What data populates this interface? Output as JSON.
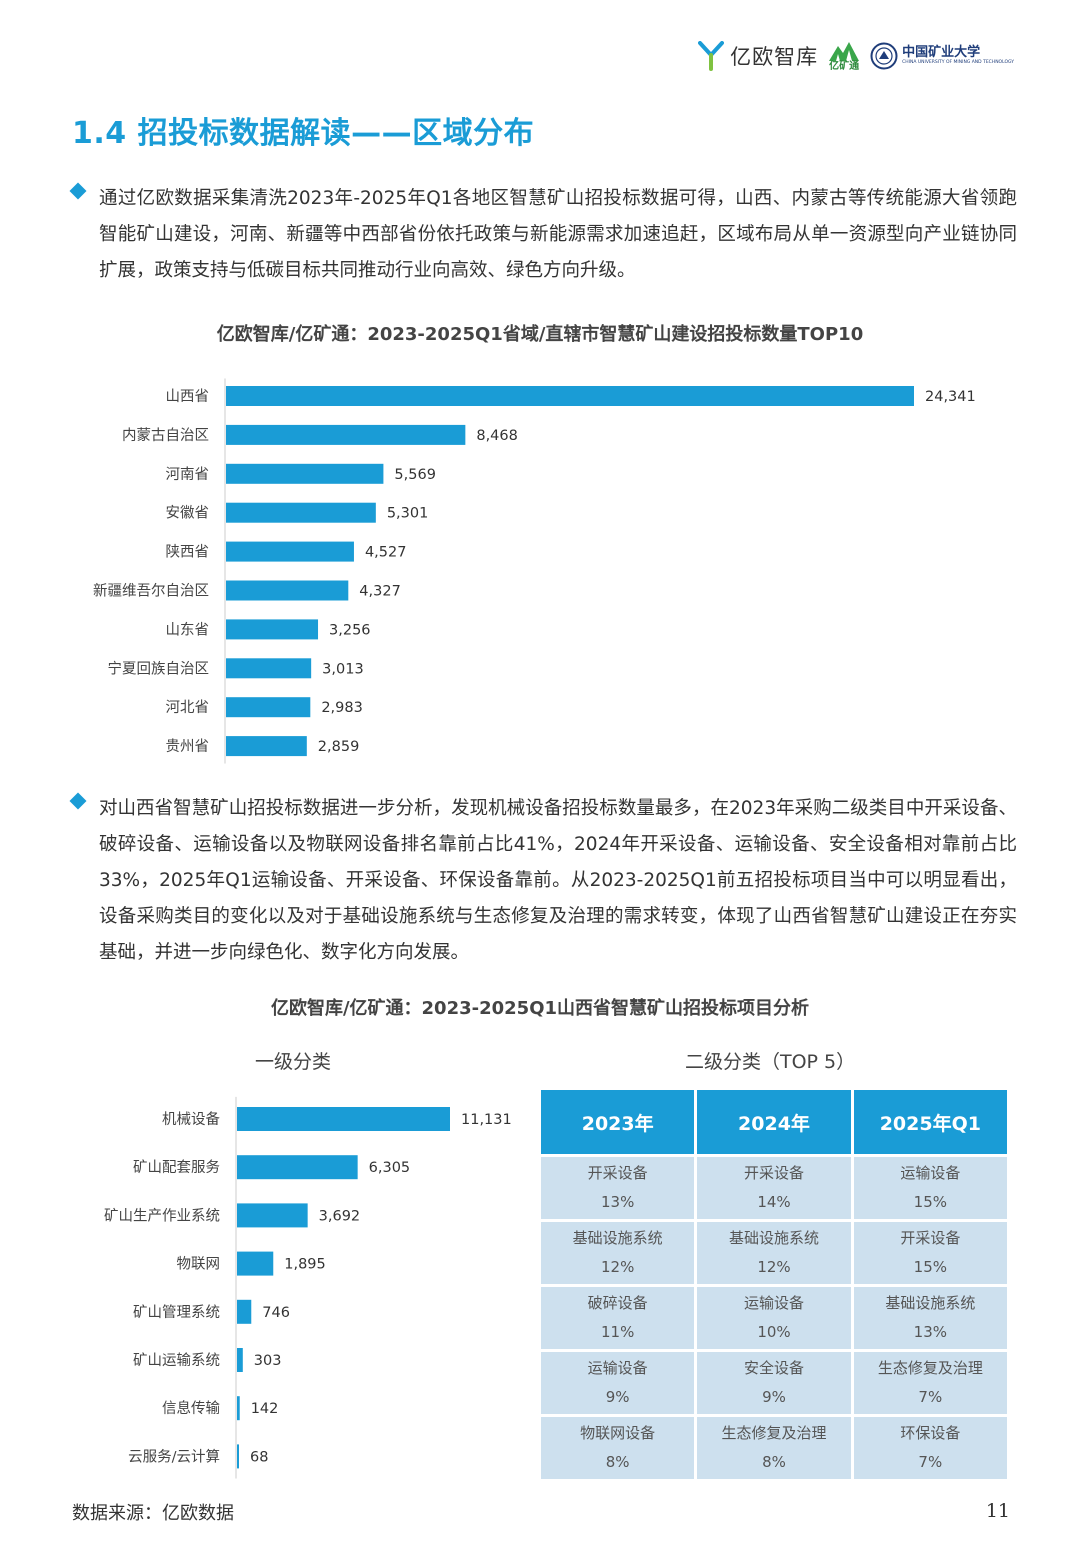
{
  "header": {
    "logo_yiou": "亿欧智库",
    "logo_yikuangtong": "亿矿通",
    "logo_cumt_cn": "中国矿业大学",
    "logo_cumt_en": "CHINA UNIVERSITY OF MINING AND TECHNOLOGY"
  },
  "page_title": "1.4 招投标数据解读——区域分布",
  "paragraph1": "通过亿欧数据采集清洗2023年-2025年Q1各地区智慧矿山招投标数据可得，山西、内蒙古等传统能源大省领跑智能矿山建设，河南、新疆等中西部省份依托政策与新能源需求加速追赶，区域布局从单一资源型向产业链协同扩展，政策支持与低碳目标共同推动行业向高效、绿色方向升级。",
  "paragraph2": "对山西省智慧矿山招投标数据进一步分析，发现机械设备招投标数量最多，在2023年采购二级类目中开采设备、破碎设备、运输设备以及物联网设备排名靠前占比41%，2024年开采设备、运输设备、安全设备相对靠前占比33%，2025年Q1运输设备、开采设备、环保设备靠前。从2023-2025Q1前五招投标项目当中可以明显看出，设备采购类目的变化以及对于基础设施系统与生态修复及治理的需求转变，体现了山西省智慧矿山建设正在夯实基础，并进一步向绿色化、数字化方向发展。",
  "colors": {
    "accent": "#1a9cd6",
    "table_cell": "#cde0ee"
  },
  "chart_data": [
    {
      "type": "bar",
      "orientation": "horizontal",
      "title": "亿欧智库/亿矿通：2023-2025Q1省域/直辖市智慧矿山建设招投标数量TOP10",
      "categories": [
        "山西省",
        "内蒙古自治区",
        "河南省",
        "安徽省",
        "陕西省",
        "新疆维吾尔自治区",
        "山东省",
        "宁夏回族自治区",
        "河北省",
        "贵州省"
      ],
      "values": [
        24341,
        8468,
        5569,
        5301,
        4527,
        4327,
        3256,
        3013,
        2983,
        2859
      ],
      "value_labels": [
        "24,341",
        "8,468",
        "5,569",
        "5,301",
        "4,527",
        "4,327",
        "3,256",
        "3,013",
        "2,983",
        "2,859"
      ],
      "xlim": [
        0,
        24341
      ],
      "grid": false,
      "color": "#1a9cd6"
    },
    {
      "type": "bar",
      "orientation": "horizontal",
      "title": "亿欧智库/亿矿通：2023-2025Q1山西省智慧矿山招投标项目分析",
      "subtitle": "一级分类",
      "categories": [
        "机械设备",
        "矿山配套服务",
        "矿山生产作业系统",
        "物联网",
        "矿山管理系统",
        "矿山运输系统",
        "信息传输",
        "云服务/云计算"
      ],
      "values": [
        11131,
        6305,
        3692,
        1895,
        746,
        303,
        142,
        68
      ],
      "value_labels": [
        "11,131",
        "6,305",
        "3,692",
        "1,895",
        "746",
        "303",
        "142",
        "68"
      ],
      "xlim": [
        0,
        11131
      ],
      "grid": false,
      "color": "#1a9cd6"
    },
    {
      "type": "table",
      "title": "二级分类（TOP 5）",
      "columns": [
        "2023年",
        "2024年",
        "2025年Q1"
      ],
      "rows": [
        [
          {
            "name": "开采设备",
            "pct": "13%"
          },
          {
            "name": "开采设备",
            "pct": "14%"
          },
          {
            "name": "运输设备",
            "pct": "15%"
          }
        ],
        [
          {
            "name": "基础设施系统",
            "pct": "12%"
          },
          {
            "name": "基础设施系统",
            "pct": "12%"
          },
          {
            "name": "开采设备",
            "pct": "15%"
          }
        ],
        [
          {
            "name": "破碎设备",
            "pct": "11%"
          },
          {
            "name": "运输设备",
            "pct": "10%"
          },
          {
            "name": "基础设施系统",
            "pct": "13%"
          }
        ],
        [
          {
            "name": "运输设备",
            "pct": "9%"
          },
          {
            "name": "安全设备",
            "pct": "9%"
          },
          {
            "name": "生态修复及治理",
            "pct": "7%"
          }
        ],
        [
          {
            "name": "物联网设备",
            "pct": "8%"
          },
          {
            "name": "生态修复及治理",
            "pct": "8%"
          },
          {
            "name": "环保设备",
            "pct": "7%"
          }
        ]
      ]
    }
  ],
  "footer": {
    "source": "数据来源：亿欧数据",
    "page_number": "11"
  }
}
